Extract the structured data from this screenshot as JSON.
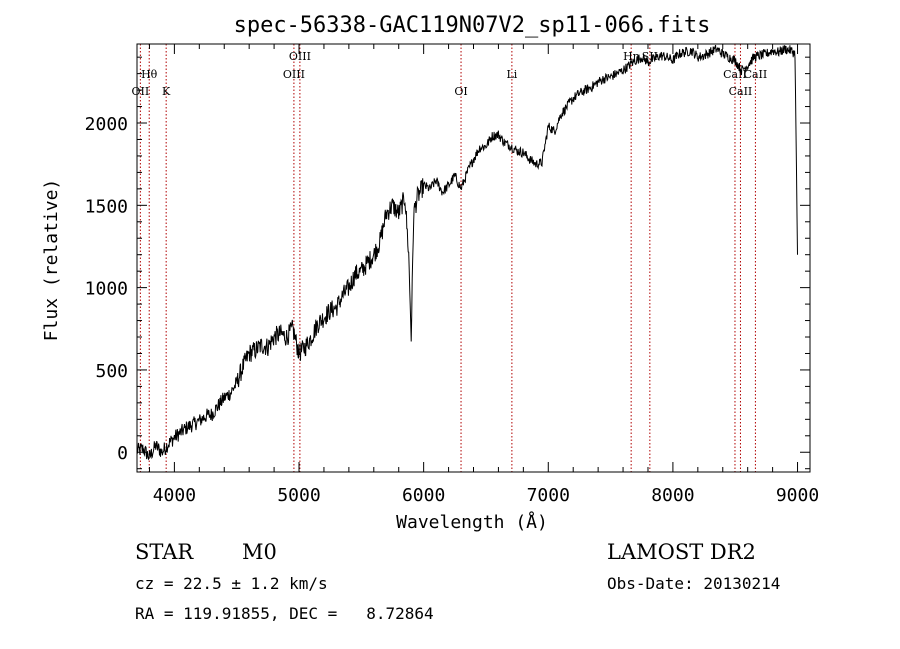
{
  "chart_data": {
    "type": "line",
    "title": "spec-56338-GAC119N07V2_sp11-066.fits",
    "xlabel": "Wavelength (Å)",
    "ylabel": "Flux (relative)",
    "xlim": [
      3700,
      9100
    ],
    "ylim": [
      -120,
      2480
    ],
    "xticks": [
      4000,
      5000,
      6000,
      7000,
      8000,
      9000
    ],
    "yticks": [
      0,
      500,
      1000,
      1500,
      2000
    ],
    "grid": false,
    "series": [
      {
        "color": "#000000",
        "x": [
          3700,
          3750,
          3800,
          3850,
          3900,
          3950,
          4000,
          4050,
          4100,
          4150,
          4200,
          4250,
          4300,
          4350,
          4400,
          4450,
          4500,
          4550,
          4600,
          4650,
          4700,
          4750,
          4800,
          4850,
          4900,
          4950,
          5000,
          5050,
          5100,
          5150,
          5200,
          5250,
          5300,
          5350,
          5400,
          5450,
          5500,
          5550,
          5600,
          5650,
          5700,
          5750,
          5800,
          5850,
          5880,
          5900,
          5920,
          5950,
          6000,
          6050,
          6100,
          6150,
          6200,
          6250,
          6300,
          6350,
          6400,
          6450,
          6500,
          6550,
          6600,
          6650,
          6700,
          6750,
          6800,
          6850,
          6900,
          6950,
          7000,
          7050,
          7100,
          7150,
          7200,
          7250,
          7300,
          7350,
          7400,
          7450,
          7500,
          7550,
          7600,
          7650,
          7700,
          7750,
          7800,
          7850,
          7900,
          7950,
          8000,
          8050,
          8100,
          8150,
          8200,
          8250,
          8300,
          8350,
          8400,
          8450,
          8500,
          8550,
          8600,
          8650,
          8700,
          8750,
          8800,
          8850,
          8900,
          8950,
          8980,
          9000
        ],
        "y": [
          10,
          20,
          -30,
          40,
          0,
          50,
          90,
          120,
          150,
          170,
          190,
          220,
          230,
          280,
          330,
          360,
          420,
          520,
          600,
          620,
          650,
          640,
          700,
          720,
          700,
          750,
          600,
          640,
          700,
          780,
          820,
          860,
          880,
          950,
          1000,
          1080,
          1100,
          1150,
          1200,
          1280,
          1450,
          1500,
          1450,
          1550,
          1200,
          700,
          1450,
          1550,
          1620,
          1600,
          1650,
          1580,
          1620,
          1680,
          1600,
          1700,
          1780,
          1850,
          1860,
          1920,
          1930,
          1880,
          1860,
          1830,
          1820,
          1780,
          1750,
          1760,
          1980,
          1950,
          2050,
          2100,
          2150,
          2180,
          2200,
          2220,
          2250,
          2270,
          2280,
          2300,
          2320,
          2350,
          2380,
          2400,
          2370,
          2390,
          2410,
          2400,
          2380,
          2420,
          2430,
          2440,
          2400,
          2410,
          2430,
          2450,
          2420,
          2400,
          2380,
          2320,
          2350,
          2400,
          2410,
          2420,
          2440,
          2430,
          2450,
          2440,
          2420,
          1200
        ]
      }
    ],
    "lines": [
      {
        "name": "OII",
        "x": 3727,
        "row": 2
      },
      {
        "name": "Hθ",
        "x": 3798,
        "row": 1
      },
      {
        "name": "K",
        "x": 3934,
        "row": 2
      },
      {
        "name": "OIII",
        "x": 4959,
        "row": 1
      },
      {
        "name": "OIII",
        "x": 5007,
        "row": 0
      },
      {
        "name": "OI",
        "x": 6300,
        "row": 2
      },
      {
        "name": "Li",
        "x": 6708,
        "row": 1
      },
      {
        "name": "Hη",
        "x": 7665,
        "row": 0
      },
      {
        "name": "SII",
        "x": 7815,
        "row": 0
      },
      {
        "name": "CaII",
        "x": 8498,
        "row": 1
      },
      {
        "name": "CaII",
        "x": 8542,
        "row": 2
      },
      {
        "name": "CaII",
        "x": 8662,
        "row": 1
      }
    ]
  },
  "info": {
    "class": "STAR",
    "subclass": "M0",
    "survey": "LAMOST DR2",
    "cz": "cz = 22.5 ± 1.2 km/s",
    "obs_date": "Obs-Date: 20130214",
    "radec": "RA = 119.91855, DEC =   8.72864"
  }
}
